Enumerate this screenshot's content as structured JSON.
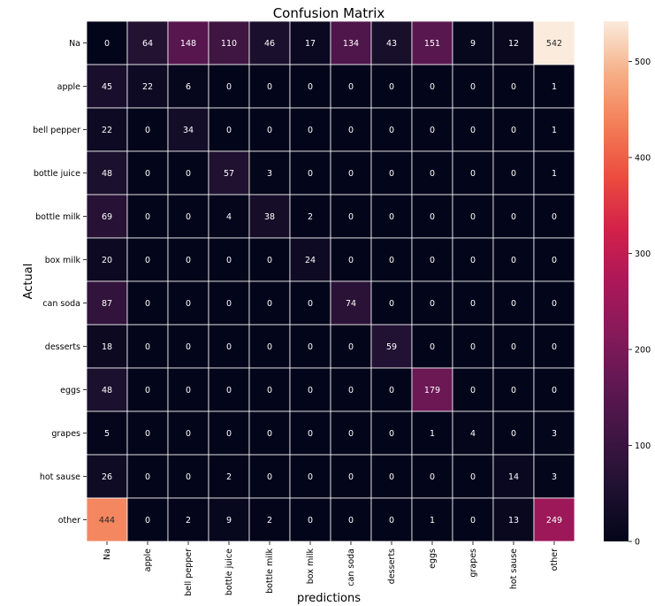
{
  "chart_data": {
    "type": "heatmap",
    "title": "Confusion Matrix",
    "xlabel": "predictions",
    "ylabel": "Actual",
    "x_categories": [
      "Na",
      "apple",
      "bell pepper",
      "bottle juice",
      "bottle milk",
      "box milk",
      "can soda",
      "desserts",
      "eggs",
      "grapes",
      "hot sause",
      "other"
    ],
    "y_categories": [
      "Na",
      "apple",
      "bell pepper",
      "bottle juice",
      "bottle milk",
      "box milk",
      "can soda",
      "desserts",
      "eggs",
      "grapes",
      "hot sause",
      "other"
    ],
    "values": [
      [
        0,
        64,
        148,
        110,
        46,
        17,
        134,
        43,
        151,
        9,
        12,
        542
      ],
      [
        45,
        22,
        6,
        0,
        0,
        0,
        0,
        0,
        0,
        0,
        0,
        1
      ],
      [
        22,
        0,
        34,
        0,
        0,
        0,
        0,
        0,
        0,
        0,
        0,
        1
      ],
      [
        48,
        0,
        0,
        57,
        3,
        0,
        0,
        0,
        0,
        0,
        0,
        1
      ],
      [
        69,
        0,
        0,
        4,
        38,
        2,
        0,
        0,
        0,
        0,
        0,
        0
      ],
      [
        20,
        0,
        0,
        0,
        0,
        24,
        0,
        0,
        0,
        0,
        0,
        0
      ],
      [
        87,
        0,
        0,
        0,
        0,
        0,
        74,
        0,
        0,
        0,
        0,
        0
      ],
      [
        18,
        0,
        0,
        0,
        0,
        0,
        0,
        59,
        0,
        0,
        0,
        0
      ],
      [
        48,
        0,
        0,
        0,
        0,
        0,
        0,
        0,
        179,
        0,
        0,
        0
      ],
      [
        5,
        0,
        0,
        0,
        0,
        0,
        0,
        0,
        1,
        4,
        0,
        3
      ],
      [
        26,
        0,
        0,
        2,
        0,
        0,
        0,
        0,
        0,
        0,
        14,
        3
      ],
      [
        444,
        0,
        2,
        9,
        2,
        0,
        0,
        0,
        1,
        0,
        13,
        249
      ]
    ],
    "colorbar": {
      "min": 0,
      "max": 542,
      "ticks": [
        0,
        100,
        200,
        300,
        400,
        500
      ]
    },
    "colormap": "rocket",
    "annotated": true,
    "grid_lines": true,
    "grid_color": "#ffffff"
  }
}
